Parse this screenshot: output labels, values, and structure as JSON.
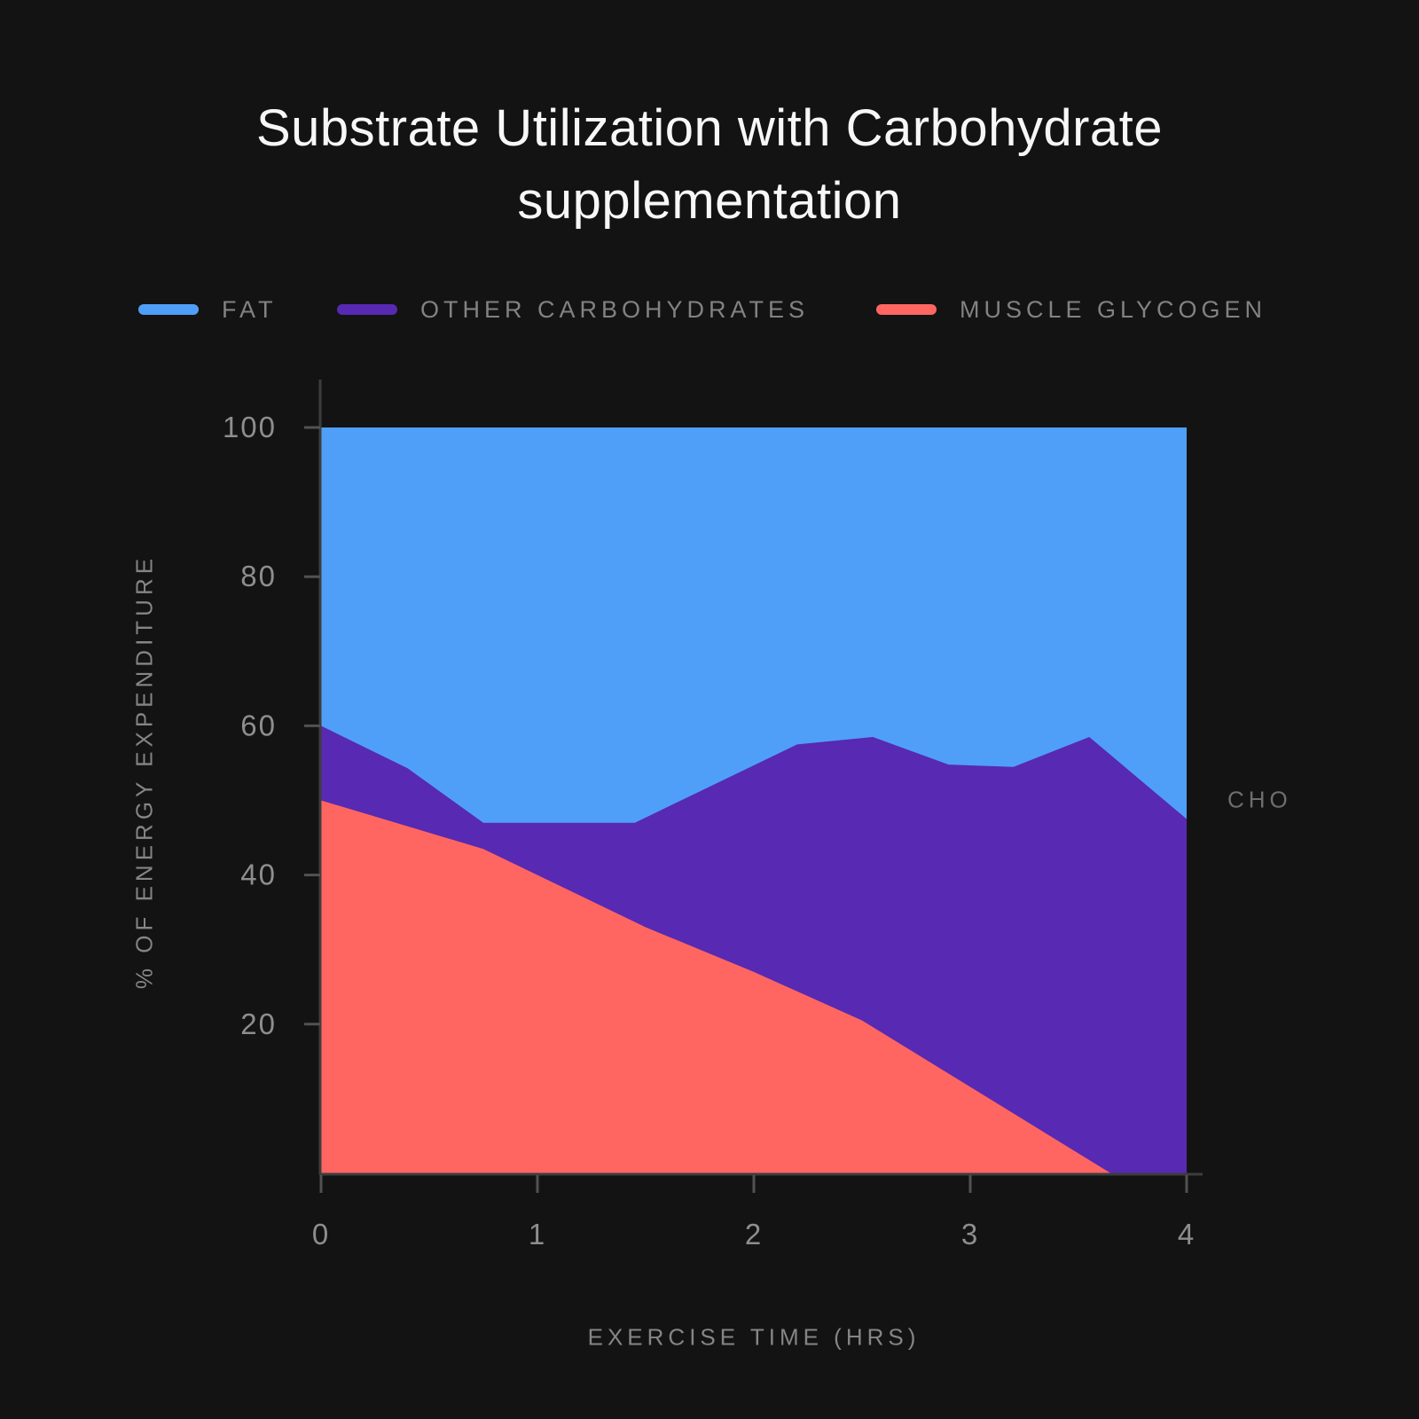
{
  "title": "Substrate Utilization with Carbohydrate supplementation",
  "legend": {
    "items": [
      {
        "label": "FAT",
        "color": "#4F9FF8"
      },
      {
        "label": "OTHER CARBOHYDRATES",
        "color": "#5829B2"
      },
      {
        "label": "MUSCLE GLYCOGEN",
        "color": "#FF6661"
      }
    ]
  },
  "axes": {
    "y_title": "% OF ENERGY EXPENDITURE",
    "x_title": "EXERCISE TIME (HRS)"
  },
  "annotation": {
    "label": "CHO"
  },
  "colors": {
    "background": "#131313",
    "fat_area": "#4F9FF8",
    "other_carbs_area": "#5829B2",
    "muscle_glycogen_area": "#FF6661",
    "axis_line": "#3d3d3d",
    "tick_mark": "#525252",
    "tick_label": "#8e8e8e",
    "title_text": "#f7f7f7",
    "legend_text": "#828282",
    "axis_title_text": "#858585",
    "annotation_text": "#6e6e6e"
  },
  "chart_data": {
    "type": "area",
    "stacked": true,
    "title": "Substrate Utilization with Carbohydrate supplementation",
    "xlabel": "EXERCISE TIME (HRS)",
    "ylabel": "% OF ENERGY EXPENDITURE",
    "xlim": [
      0,
      4
    ],
    "ylim": [
      0,
      100
    ],
    "x_ticks": [
      0,
      1,
      2,
      3,
      4
    ],
    "y_ticks": [
      20,
      40,
      60,
      80,
      100
    ],
    "grid": false,
    "legend_position": "top",
    "annotation": {
      "label": "CHO",
      "x": 4,
      "y": 50,
      "side": "right"
    },
    "boundaries": {
      "muscle_glycogen_top": [
        [
          0,
          50
        ],
        [
          0.75,
          43.5
        ],
        [
          1.5,
          33
        ],
        [
          2,
          27
        ],
        [
          2.5,
          20.5
        ],
        [
          3.65,
          0
        ],
        [
          4,
          0
        ]
      ],
      "total_carbohydrate_top": [
        [
          0,
          60
        ],
        [
          0.4,
          54.3
        ],
        [
          0.75,
          47
        ],
        [
          1.45,
          47
        ],
        [
          2.2,
          57.5
        ],
        [
          2.55,
          58.5
        ],
        [
          2.9,
          54.8
        ],
        [
          3.2,
          54.5
        ],
        [
          3.55,
          58.5
        ],
        [
          4,
          47.5
        ]
      ]
    },
    "series": [
      {
        "name": "FAT",
        "color": "#4F9FF8",
        "fills": "from total_carbohydrate_top up to 100",
        "values_at_hours": [
          [
            0,
            40
          ],
          [
            1,
            53
          ],
          [
            2,
            45.3
          ],
          [
            3,
            45.3
          ],
          [
            4,
            52.5
          ]
        ]
      },
      {
        "name": "OTHER CARBOHYDRATES",
        "color": "#5829B2",
        "fills": "between muscle_glycogen_top and total_carbohydrate_top",
        "values_at_hours": [
          [
            0,
            10
          ],
          [
            1,
            7
          ],
          [
            2,
            27.7
          ],
          [
            3,
            43.1
          ],
          [
            4,
            47.5
          ]
        ]
      },
      {
        "name": "MUSCLE GLYCOGEN",
        "color": "#FF6661",
        "fills": "from 0 up to muscle_glycogen_top",
        "values_at_hours": [
          [
            0,
            50
          ],
          [
            1,
            40
          ],
          [
            2,
            27
          ],
          [
            3,
            11.6
          ],
          [
            4,
            0
          ]
        ]
      }
    ]
  }
}
